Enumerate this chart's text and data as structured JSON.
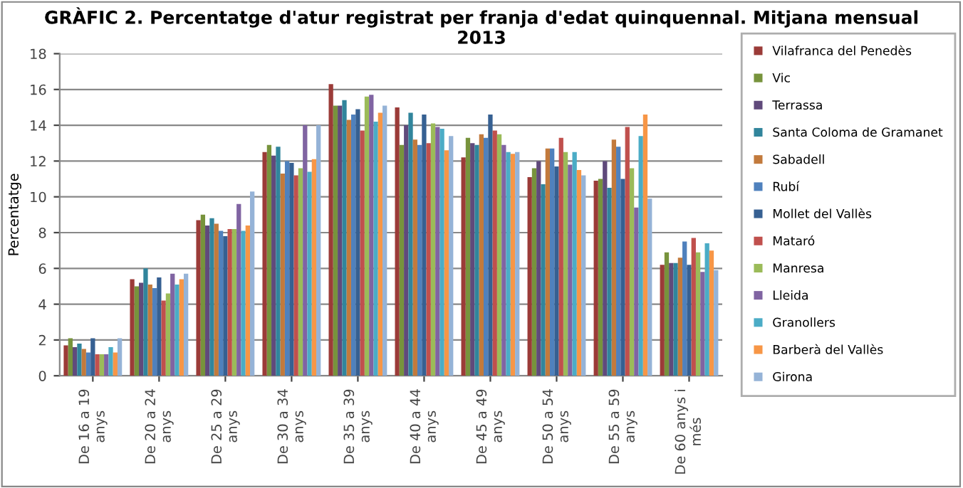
{
  "chart_data": {
    "type": "bar",
    "title": "GRÀFIC 2. Percentatge d'atur registrat per franja d'edat quinquennal. Mitjana mensual\n2013",
    "ylabel": "Percentatge",
    "categories": [
      "De 16 a 19\nanys",
      "De 20 a 24\nanys",
      "De 25 a 29\nanys",
      "De 30 a 34\nanys",
      "De 35 a 39\nanys",
      "De 40 a 44\nanys",
      "De 45 a 49\nanys",
      "De 50 a 54\nanys",
      "De 55 a 59\nanys",
      "De 60 anys i\nmés"
    ],
    "series": [
      {
        "name": "Vilafranca del Penedès",
        "color": "#9b3b38",
        "values": [
          1.7,
          5.4,
          8.7,
          12.5,
          16.3,
          15.0,
          12.2,
          11.1,
          10.9,
          6.2
        ]
      },
      {
        "name": "Vic",
        "color": "#77933c",
        "values": [
          2.1,
          5.0,
          9.0,
          12.9,
          15.1,
          12.9,
          13.3,
          11.6,
          11.0,
          6.9
        ]
      },
      {
        "name": "Terrassa",
        "color": "#604a7b",
        "values": [
          1.6,
          5.2,
          8.4,
          12.3,
          15.1,
          14.0,
          13.0,
          12.0,
          12.0,
          6.3
        ]
      },
      {
        "name": "Santa Coloma de Gramanet",
        "color": "#31859c",
        "values": [
          1.8,
          6.0,
          8.8,
          12.8,
          15.4,
          14.7,
          12.9,
          10.7,
          10.5,
          6.3
        ]
      },
      {
        "name": "Sabadell",
        "color": "#c27a3c",
        "values": [
          1.5,
          5.1,
          8.5,
          11.3,
          14.3,
          13.2,
          13.5,
          12.7,
          13.2,
          6.6
        ]
      },
      {
        "name": "Rubí",
        "color": "#4f81bd",
        "values": [
          1.3,
          4.9,
          8.1,
          12.0,
          14.6,
          12.9,
          13.3,
          12.7,
          12.8,
          7.5
        ]
      },
      {
        "name": "Mollet del Vallès",
        "color": "#366092",
        "values": [
          2.1,
          5.5,
          7.8,
          11.9,
          14.9,
          14.6,
          14.6,
          11.7,
          11.0,
          6.2
        ]
      },
      {
        "name": "Mataró",
        "color": "#c0504d",
        "values": [
          1.2,
          4.2,
          8.2,
          11.2,
          13.7,
          13.0,
          13.7,
          13.3,
          13.9,
          7.7
        ]
      },
      {
        "name": "Manresa",
        "color": "#9bbb59",
        "values": [
          1.2,
          4.6,
          8.2,
          11.6,
          15.6,
          14.1,
          13.5,
          12.5,
          11.6,
          6.9
        ]
      },
      {
        "name": "Lleida",
        "color": "#8064a2",
        "values": [
          1.2,
          5.7,
          9.6,
          14.0,
          15.7,
          13.9,
          12.9,
          11.8,
          9.4,
          5.8
        ]
      },
      {
        "name": "Granollers",
        "color": "#4bacc6",
        "values": [
          1.6,
          5.1,
          8.1,
          11.4,
          14.2,
          13.8,
          12.5,
          12.5,
          13.4,
          7.4
        ]
      },
      {
        "name": "Barberà del Vallès",
        "color": "#f79646",
        "values": [
          1.3,
          5.4,
          8.4,
          12.1,
          14.7,
          12.6,
          12.4,
          11.5,
          14.6,
          7.0
        ]
      },
      {
        "name": "Girona",
        "color": "#95b3d7",
        "values": [
          2.1,
          5.7,
          10.3,
          14.0,
          15.1,
          13.4,
          12.5,
          11.2,
          9.9,
          5.9
        ]
      }
    ],
    "ylim": [
      0,
      18
    ],
    "yticks": [
      0,
      2,
      4,
      6,
      8,
      10,
      12,
      14,
      16,
      18
    ],
    "grid": "y",
    "legend": "right"
  }
}
